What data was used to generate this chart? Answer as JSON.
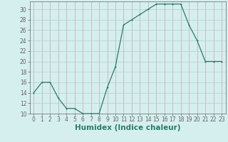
{
  "x": [
    0,
    1,
    2,
    3,
    4,
    5,
    6,
    7,
    8,
    9,
    10,
    11,
    12,
    13,
    14,
    15,
    16,
    17,
    18,
    19,
    20,
    21,
    22,
    23
  ],
  "y": [
    14,
    16,
    16,
    13,
    11,
    11,
    10,
    10,
    10,
    15,
    19,
    27,
    28,
    29,
    30,
    31,
    31,
    31,
    31,
    27,
    24,
    20,
    20,
    20
  ],
  "xlabel": "Humidex (Indice chaleur)",
  "ylim": [
    10,
    31
  ],
  "xlim": [
    -0.5,
    23.5
  ],
  "yticks": [
    10,
    12,
    14,
    16,
    18,
    20,
    22,
    24,
    26,
    28,
    30
  ],
  "xticks": [
    0,
    1,
    2,
    3,
    4,
    5,
    6,
    7,
    8,
    9,
    10,
    11,
    12,
    13,
    14,
    15,
    16,
    17,
    18,
    19,
    20,
    21,
    22,
    23
  ],
  "line_color": "#2d7a6e",
  "marker_color": "#2d7a6e",
  "bg_color": "#d4efee",
  "vgrid_color": "#c8a8a8",
  "hgrid_color": "#b0d0cc",
  "spine_color": "#666666",
  "tick_label_fontsize": 5.5,
  "xlabel_fontsize": 7.5,
  "xlabel_color": "#2d7a6e",
  "marker_size": 2.0,
  "line_width": 0.9
}
